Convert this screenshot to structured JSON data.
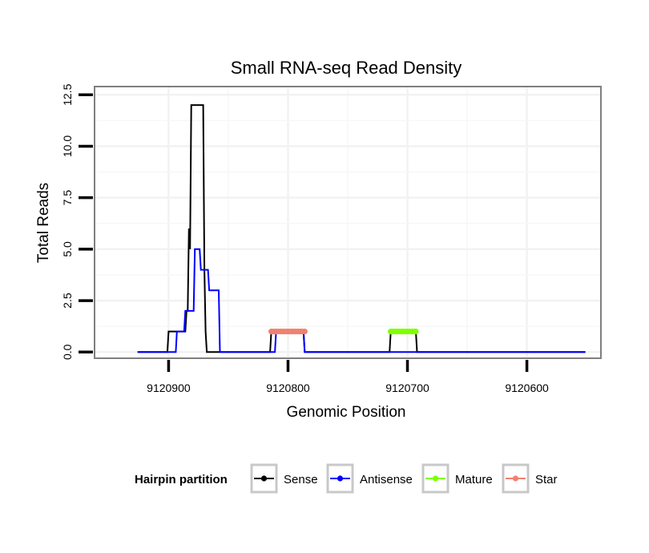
{
  "chart_data": {
    "type": "line",
    "title": "Small RNA-seq Read Density",
    "xlabel": "Genomic Position",
    "ylabel": "Total Reads",
    "xlim": [
      9120962,
      9120538
    ],
    "ylim": [
      -0.3,
      12.9
    ],
    "x_reversed": true,
    "grid": true,
    "x_ticks": [
      9120900,
      9120800,
      9120700,
      9120600
    ],
    "x_tick_labels": [
      "9120900",
      "9120800",
      "9120700",
      "9120600"
    ],
    "y_ticks": [
      0,
      2.5,
      5,
      7.5,
      10,
      12.5
    ],
    "y_tick_labels": [
      "0.0",
      "2.5",
      "5.0",
      "7.5",
      "10.0",
      "12.5"
    ],
    "series": [
      {
        "name": "Sense",
        "color": "#000000",
        "points": [
          [
            9120926,
            0
          ],
          [
            9120901,
            0
          ],
          [
            9120900,
            1
          ],
          [
            9120886,
            1
          ],
          [
            9120885,
            2
          ],
          [
            9120884,
            2
          ],
          [
            9120883,
            6
          ],
          [
            9120882,
            5
          ],
          [
            9120881,
            12
          ],
          [
            9120871,
            12
          ],
          [
            9120870,
            4
          ],
          [
            9120869,
            1
          ],
          [
            9120868,
            0
          ],
          [
            9120815,
            0
          ],
          [
            9120814,
            1
          ],
          [
            9120787,
            1
          ],
          [
            9120786,
            0
          ],
          [
            9120715,
            0
          ],
          [
            9120714,
            1
          ],
          [
            9120693,
            1
          ],
          [
            9120692,
            0
          ],
          [
            9120551,
            0
          ]
        ]
      },
      {
        "name": "Antisense",
        "color": "#0000FF",
        "points": [
          [
            9120926,
            0
          ],
          [
            9120894,
            0
          ],
          [
            9120893,
            1
          ],
          [
            9120887,
            1
          ],
          [
            9120886,
            2
          ],
          [
            9120879,
            2
          ],
          [
            9120878,
            5
          ],
          [
            9120874,
            5
          ],
          [
            9120873,
            4
          ],
          [
            9120867,
            4
          ],
          [
            9120866,
            3
          ],
          [
            9120858,
            3
          ],
          [
            9120857,
            0
          ],
          [
            9120811,
            0
          ],
          [
            9120810,
            1
          ],
          [
            9120787,
            1
          ],
          [
            9120786,
            0
          ],
          [
            9120551,
            0
          ]
        ]
      },
      {
        "name": "Mature",
        "color": "#7FFF00",
        "points": [
          [
            9120714,
            1
          ],
          [
            9120712,
            1
          ],
          [
            9120710,
            1
          ],
          [
            9120708,
            1
          ],
          [
            9120706,
            1
          ],
          [
            9120704,
            1
          ],
          [
            9120702,
            1
          ],
          [
            9120700,
            1
          ],
          [
            9120698,
            1
          ],
          [
            9120696,
            1
          ],
          [
            9120694,
            1
          ],
          [
            9120693,
            1
          ]
        ]
      },
      {
        "name": "Star",
        "color": "#F08070",
        "points": [
          [
            9120814,
            1
          ],
          [
            9120812,
            1
          ],
          [
            9120810,
            1
          ],
          [
            9120808,
            1
          ],
          [
            9120806,
            1
          ],
          [
            9120804,
            1
          ],
          [
            9120802,
            1
          ],
          [
            9120800,
            1
          ],
          [
            9120798,
            1
          ],
          [
            9120796,
            1
          ],
          [
            9120794,
            1
          ],
          [
            9120792,
            1
          ],
          [
            9120790,
            1
          ],
          [
            9120788,
            1
          ],
          [
            9120786,
            1
          ]
        ]
      }
    ],
    "legend": {
      "title": "Hairpin partition",
      "position": "bottom",
      "entries": [
        "Sense",
        "Antisense",
        "Mature",
        "Star"
      ]
    }
  }
}
